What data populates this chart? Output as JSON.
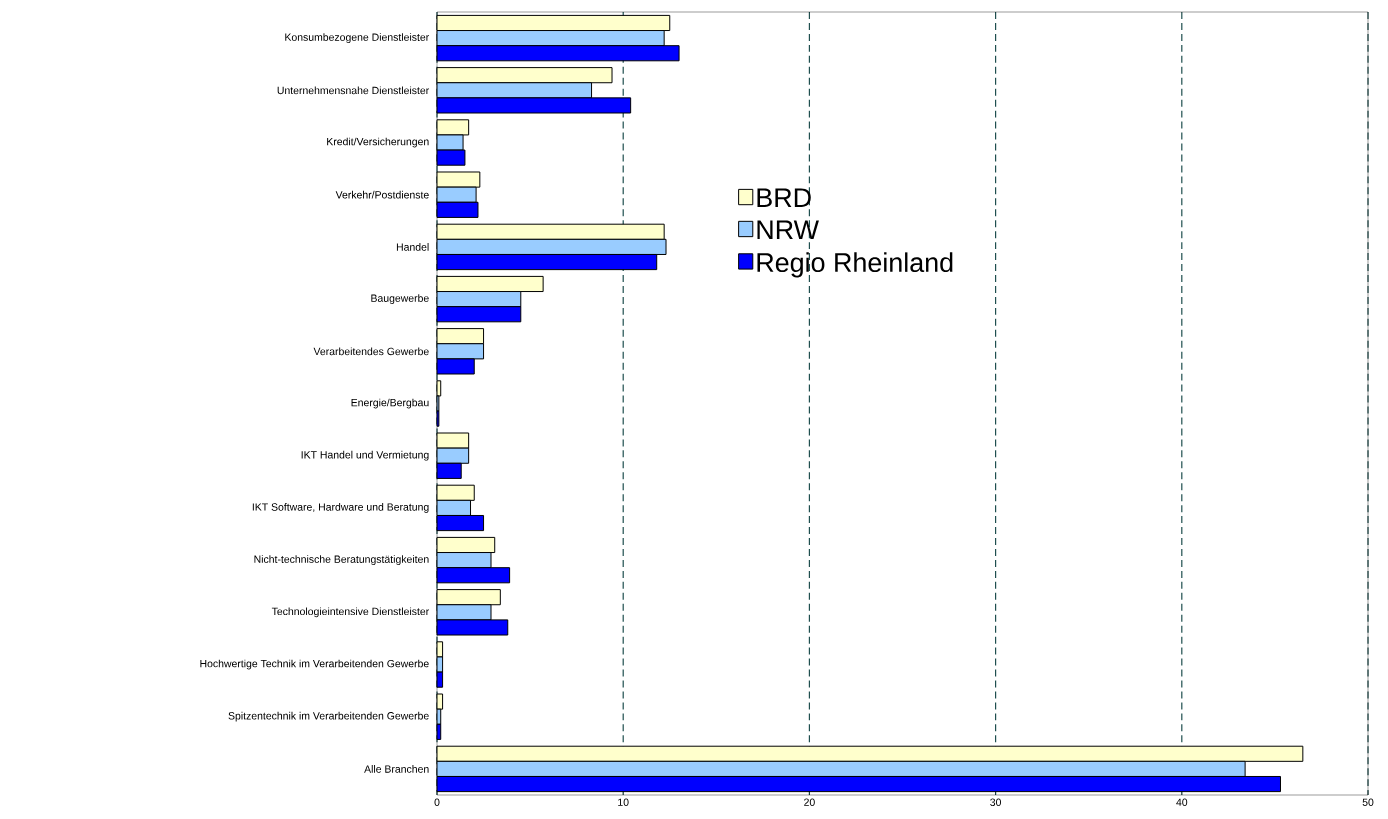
{
  "chart_data": {
    "type": "bar",
    "orientation": "horizontal",
    "categories": [
      "Konsumbezogene Dienstleister",
      "Unternehmensnahe Dienstleister",
      "Kredit/Versicherungen",
      "Verkehr/Postdienste",
      "Handel",
      "Baugewerbe",
      "Verarbeitendes Gewerbe",
      "Energie/Bergbau",
      "IKT Handel und Vermietung",
      "IKT Software, Hardware und Beratung",
      "Nicht-technische Beratungstätigkeiten",
      "Technologieintensive Dienstleister",
      "Hochwertige Technik im Verarbeitenden Gewerbe",
      "Spitzentechnik im Verarbeitenden Gewerbe",
      "Alle Branchen"
    ],
    "series": [
      {
        "name": "BRD",
        "color": "#ffffcc",
        "values": [
          12.5,
          9.4,
          1.7,
          2.3,
          12.2,
          5.7,
          2.5,
          0.2,
          1.7,
          2.0,
          3.1,
          3.4,
          0.3,
          0.3,
          46.5
        ]
      },
      {
        "name": "NRW",
        "color": "#99ccff",
        "values": [
          12.2,
          8.3,
          1.4,
          2.1,
          12.3,
          4.5,
          2.5,
          0.1,
          1.7,
          1.8,
          2.9,
          2.9,
          0.3,
          0.2,
          43.4
        ]
      },
      {
        "name": "Regio Rheinland",
        "color": "#0000ff",
        "values": [
          13.0,
          10.4,
          1.5,
          2.2,
          11.8,
          4.5,
          2.0,
          0.1,
          1.3,
          2.5,
          3.9,
          3.8,
          0.3,
          0.2,
          45.3
        ]
      }
    ],
    "xlim": [
      0,
      50
    ],
    "xticks": [
      0,
      10,
      20,
      30,
      40,
      50
    ],
    "grid": "x",
    "legend": "center"
  }
}
